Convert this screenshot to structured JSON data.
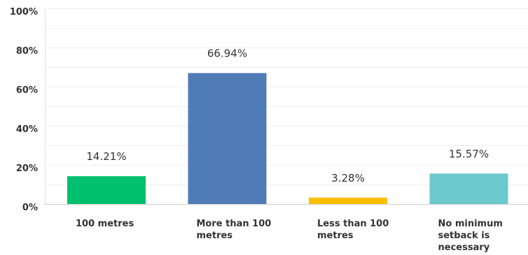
{
  "chart_data": {
    "type": "bar",
    "categories": [
      "100 metres",
      "More than 100 metres",
      "Less than 100 metres",
      "No minimum setback is necessary"
    ],
    "values": [
      14.21,
      66.94,
      3.28,
      15.57
    ],
    "value_labels": [
      "14.21%",
      "66.94%",
      "3.28%",
      "15.57%"
    ],
    "colors": [
      "#00BF6F",
      "#507CB6",
      "#F9BE00",
      "#6BC8CD"
    ],
    "ylim": [
      0,
      100
    ],
    "yticks": [
      0,
      20,
      40,
      60,
      80,
      100
    ],
    "ytick_labels": [
      "0%",
      "20%",
      "40%",
      "60%",
      "80%",
      "100%"
    ],
    "grid": true,
    "title": "",
    "xlabel": "",
    "ylabel": ""
  }
}
